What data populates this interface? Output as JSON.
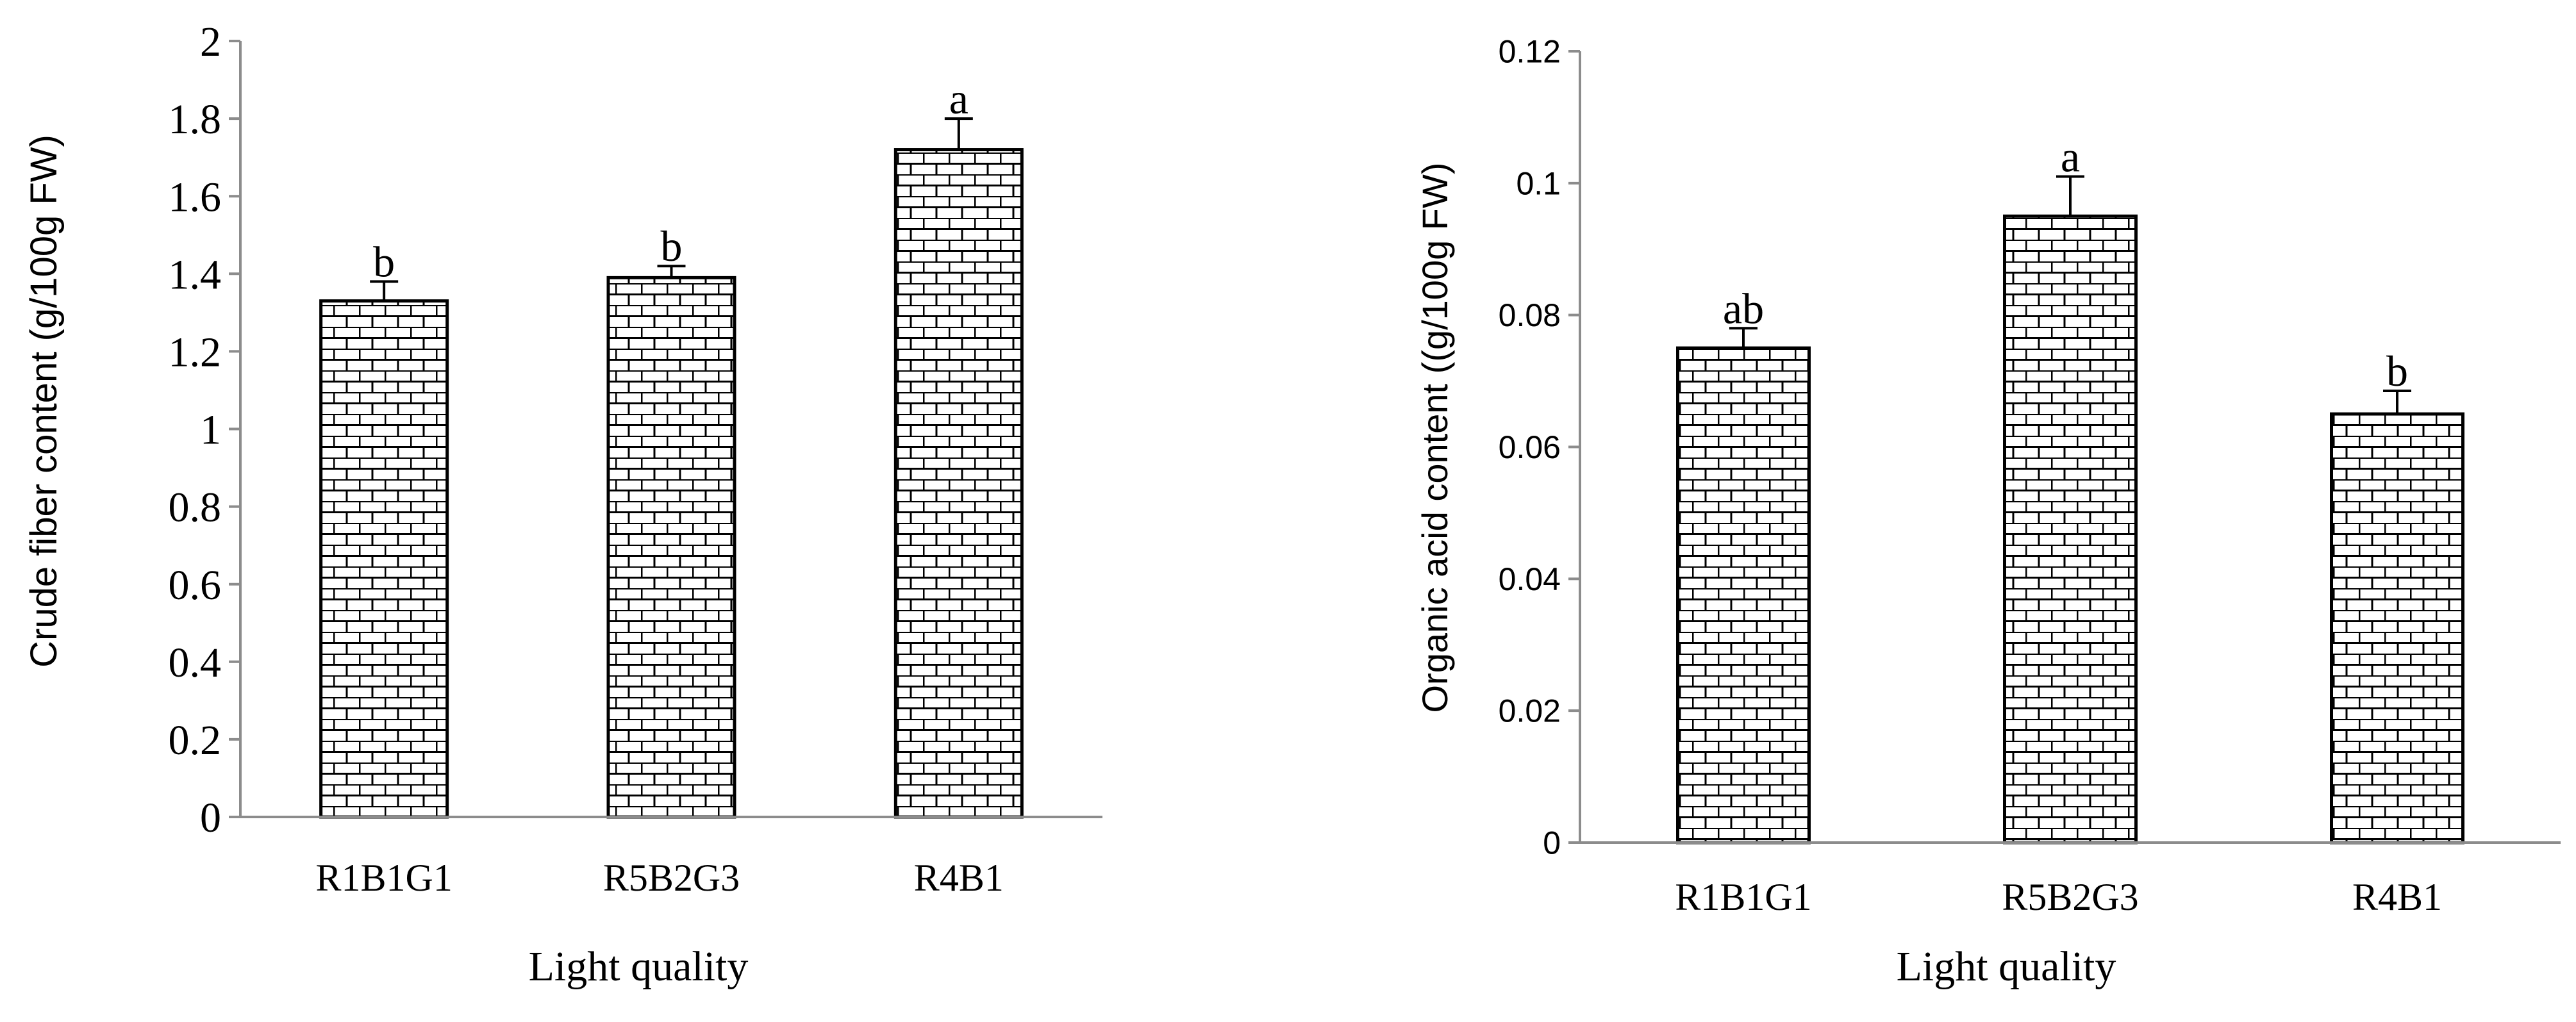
{
  "charts": [
    {
      "chart_data": {
        "type": "bar",
        "categories": [
          "R1B1G1",
          "R5B2G3",
          "R4B1"
        ],
        "values": [
          1.33,
          1.39,
          1.72
        ],
        "errors": [
          0.05,
          0.03,
          0.08
        ],
        "significance_labels": [
          "b",
          "b",
          "a"
        ],
        "xlabel": "Light quality",
        "ylabel": "Crude fiber content (g/100g FW)",
        "ylim": [
          0,
          2
        ],
        "yticks": [
          "0",
          "0.2",
          "0.4",
          "0.6",
          "0.8",
          "1",
          "1.2",
          "1.4",
          "1.6",
          "1.8",
          "2"
        ],
        "grid": false,
        "bar_pattern": "brick",
        "colors": {
          "bar_fill": "#ffffff",
          "bar_pattern": "#000000",
          "axis": "#8c8c8c"
        }
      }
    },
    {
      "chart_data": {
        "type": "bar",
        "categories": [
          "R1B1G1",
          "R5B2G3",
          "R4B1"
        ],
        "values": [
          0.075,
          0.095,
          0.065
        ],
        "errors": [
          0.003,
          0.006,
          0.0035
        ],
        "significance_labels": [
          "ab",
          "a",
          "b"
        ],
        "xlabel": "Light quality",
        "ylabel": "Organic acid content ((g/100g FW)",
        "ylim": [
          0,
          0.12
        ],
        "yticks": [
          "0",
          "0.02",
          "0.04",
          "0.06",
          "0.08",
          "0.1",
          "0.12"
        ],
        "grid": false,
        "bar_pattern": "brick",
        "colors": {
          "bar_fill": "#ffffff",
          "bar_pattern": "#000000",
          "axis": "#8c8c8c"
        }
      }
    }
  ]
}
